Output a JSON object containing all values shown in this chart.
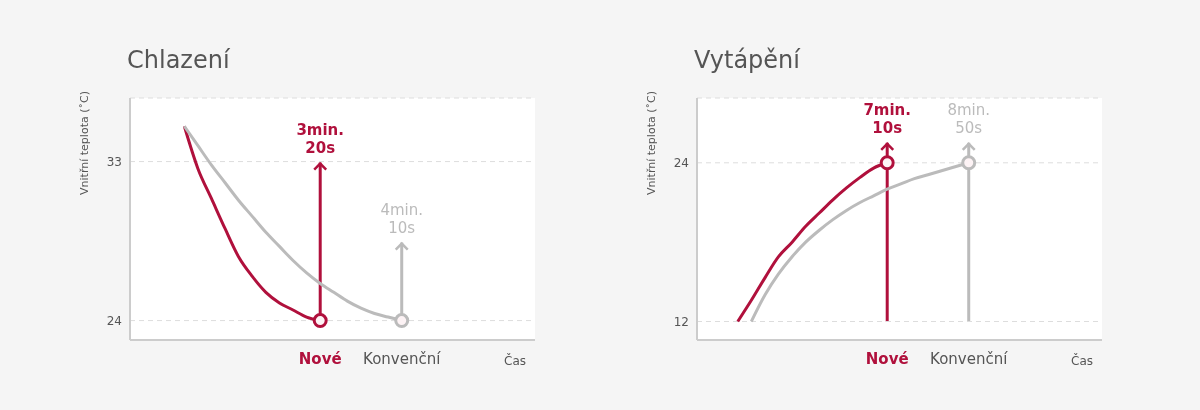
{
  "chart_data": [
    {
      "type": "line",
      "title": "Chlazení",
      "ylabel": "Vnitřní teplota (˚C)",
      "xlabel": "Čas",
      "categories": [
        null,
        null,
        null,
        null,
        null,
        null,
        null,
        null,
        null,
        null,
        null,
        null,
        null,
        null,
        "Nové",
        null,
        null,
        null,
        null,
        null,
        "Konvenční",
        null,
        null,
        null,
        null,
        null,
        null,
        null,
        null,
        null
      ],
      "series": [
        {
          "color": "#b0103c",
          "values": [
            null,
            null,
            null,
            null,
            35.0,
            32.6,
            30.9,
            29.2,
            27.6,
            26.5,
            25.6,
            25.0,
            24.6,
            24.2,
            24.0,
            null,
            null,
            null,
            null,
            null,
            null,
            null,
            null,
            null,
            null,
            null,
            null,
            null,
            null,
            null
          ]
        },
        {
          "color": "#bbbbbb",
          "values": [
            null,
            null,
            null,
            null,
            35.0,
            33.9,
            32.8,
            31.8,
            30.8,
            29.9,
            29.0,
            28.2,
            27.4,
            26.7,
            26.1,
            25.6,
            25.1,
            24.7,
            24.4,
            24.2,
            24.0,
            null,
            null,
            null,
            null,
            null,
            null,
            null,
            null,
            null
          ]
        }
      ],
      "ylim": [
        22.9,
        36.6
      ],
      "yticks": [
        24,
        33
      ],
      "grid": "y",
      "line_style": "solid",
      "annotations": [
        {
          "text": "3min.\n20s",
          "x": "Nové",
          "y": 24
        },
        {
          "text": "4min.\n10s",
          "x": "Konvenční",
          "y": 24
        }
      ]
    },
    {
      "type": "line",
      "title": "Vytápění",
      "ylabel": "Vnitřní teplota (˚C)",
      "xlabel": "Čas",
      "categories": [
        null,
        null,
        null,
        null,
        null,
        null,
        null,
        null,
        null,
        null,
        null,
        null,
        null,
        null,
        "Nové",
        null,
        null,
        null,
        null,
        null,
        "Konvenční",
        null,
        null,
        null,
        null,
        null,
        null,
        null,
        null,
        null
      ],
      "series": [
        {
          "color": "#b0103c",
          "values": [
            null,
            null,
            null,
            12.0,
            13.6,
            15.3,
            16.9,
            18.0,
            19.2,
            20.2,
            21.2,
            22.1,
            22.9,
            23.6,
            24.0,
            null,
            null,
            null,
            null,
            null,
            null,
            null,
            null,
            null,
            null,
            null,
            null,
            null,
            null,
            null
          ]
        },
        {
          "color": "#bbbbbb",
          "values": [
            null,
            null,
            null,
            null,
            12.0,
            14.0,
            15.6,
            16.9,
            18.0,
            18.9,
            19.7,
            20.4,
            21.0,
            21.5,
            22.0,
            22.4,
            22.8,
            23.1,
            23.4,
            23.7,
            24.0,
            null,
            null,
            null,
            null,
            null,
            null,
            null,
            null,
            null
          ]
        }
      ],
      "ylim": [
        10.6,
        28.9
      ],
      "yticks": [
        12,
        24
      ],
      "grid": "y",
      "line_style": "solid",
      "annotations": [
        {
          "text": "7min.\n10s",
          "x": "Nové",
          "y": 24
        },
        {
          "text": "8min.\n50s",
          "x": "Konvenční",
          "y": 24
        }
      ]
    }
  ]
}
